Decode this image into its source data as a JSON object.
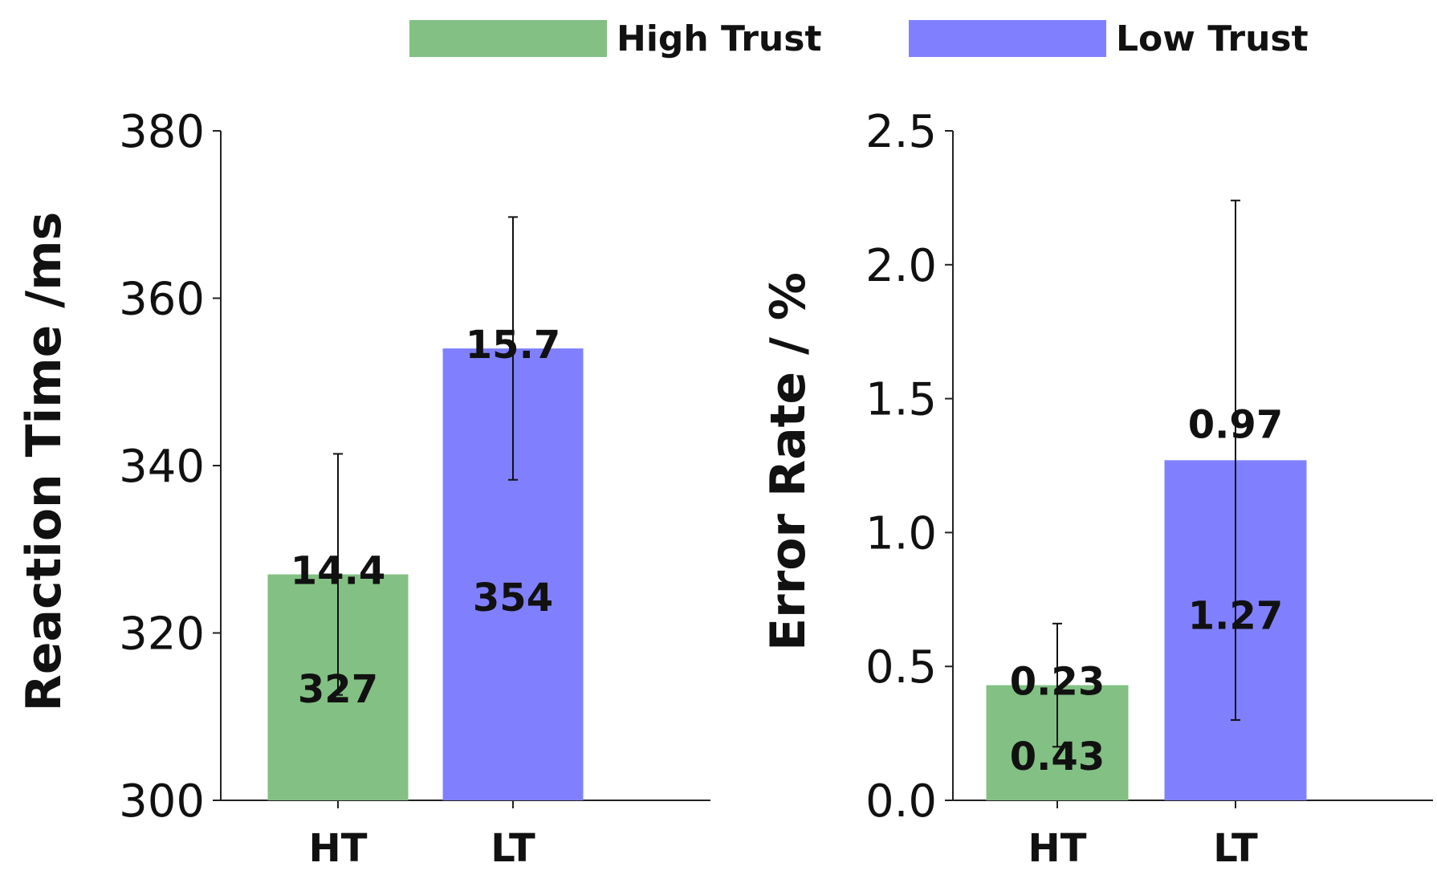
{
  "legend": [
    {
      "label": "High Trust",
      "color": "#82c083"
    },
    {
      "label": "Low Trust",
      "color": "#8080ff"
    }
  ],
  "chart_data": [
    {
      "type": "bar",
      "ylabel": "Reaction Time /ms",
      "ylim": [
        300,
        380
      ],
      "yticks": [
        "300",
        "320",
        "340",
        "360",
        "380"
      ],
      "categories": [
        "HT",
        "LT"
      ],
      "values": [
        327,
        354
      ],
      "errors": [
        14.4,
        15.7
      ],
      "value_labels": [
        "327",
        "354"
      ],
      "error_labels": [
        "14.4",
        "15.7"
      ],
      "colors": [
        "#82c083",
        "#8080ff"
      ]
    },
    {
      "type": "bar",
      "ylabel": "Error Rate / %",
      "ylim": [
        0.0,
        2.5
      ],
      "yticks": [
        "0.0",
        "0.5",
        "1.0",
        "1.5",
        "2.0",
        "2.5"
      ],
      "categories": [
        "HT",
        "LT"
      ],
      "values": [
        0.43,
        1.27
      ],
      "errors": [
        0.23,
        0.97
      ],
      "value_labels": [
        "0.43",
        "1.27"
      ],
      "error_labels": [
        "0.23",
        "0.97"
      ],
      "colors": [
        "#82c083",
        "#8080ff"
      ]
    }
  ]
}
